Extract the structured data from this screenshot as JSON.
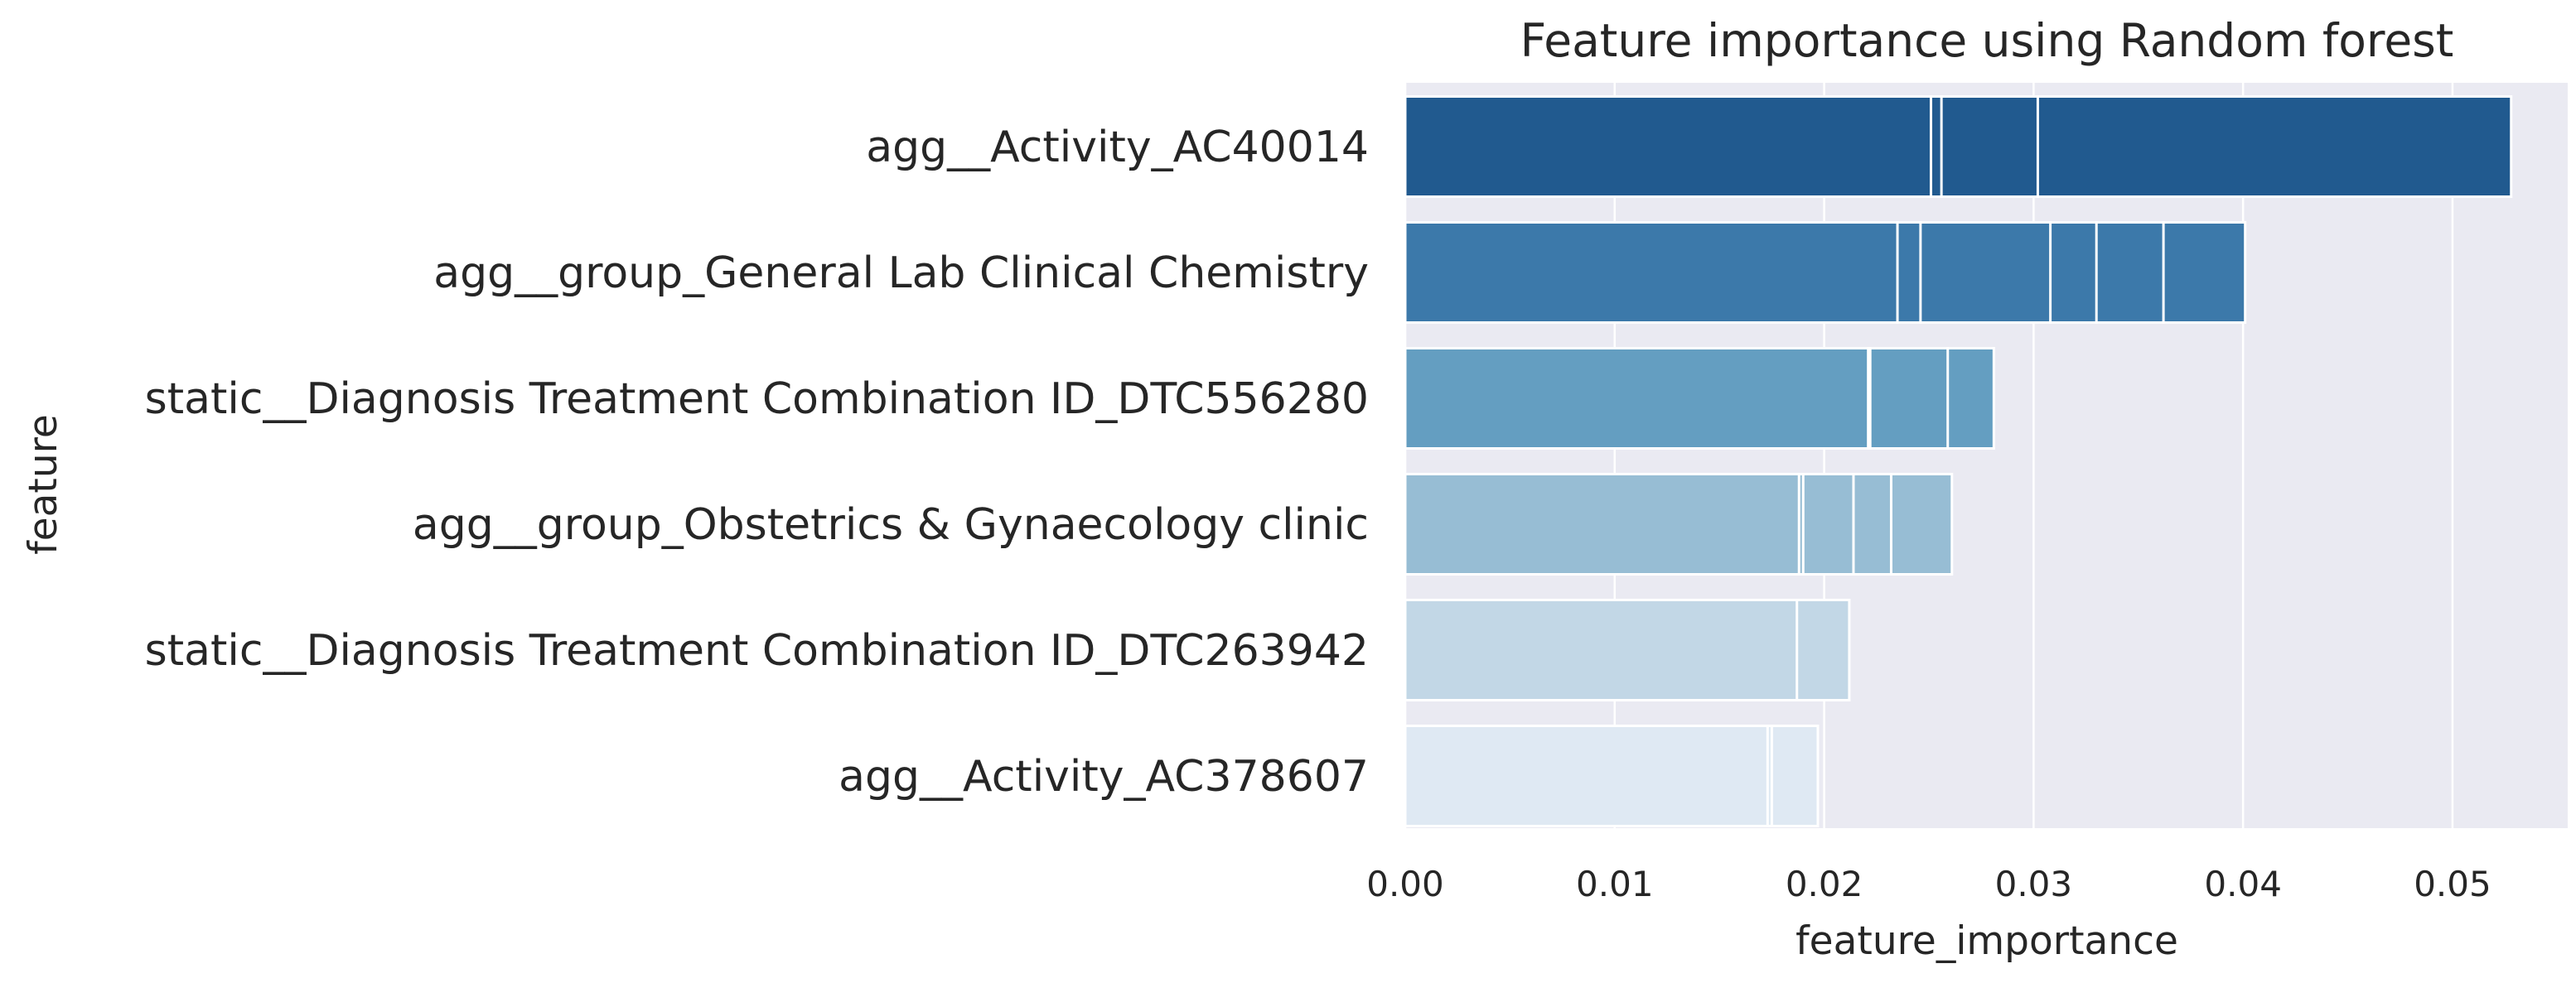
{
  "chart_data": {
    "type": "bar",
    "orientation": "horizontal",
    "title": "Feature importance using Random forest",
    "xlabel": "feature_importance",
    "ylabel": "feature",
    "xlim": [
      0,
      0.0555
    ],
    "xticks": [
      0.0,
      0.01,
      0.02,
      0.03,
      0.04,
      0.05
    ],
    "xtick_labels": [
      "0.00",
      "0.01",
      "0.02",
      "0.03",
      "0.04",
      "0.05"
    ],
    "grid": true,
    "categories": [
      "agg__Activity_AC40014",
      "agg__group_General Lab Clinical Chemistry",
      "static__Diagnosis Treatment Combination ID_DTC556280",
      "agg__group_Obstetrics & Gynaecology clinic",
      "static__Diagnosis Treatment Combination ID_DTC263942",
      "agg__Activity_AC378607"
    ],
    "values": [
      0.0528,
      0.0401,
      0.0281,
      0.0261,
      0.0212,
      0.0197
    ],
    "overlaid_bar_values": [
      [
        0.0528,
        0.0302,
        0.0256,
        0.0251
      ],
      [
        0.0401,
        0.0362,
        0.033,
        0.0308,
        0.0246,
        0.0235
      ],
      [
        0.0281,
        0.0259,
        0.0222,
        0.0221
      ],
      [
        0.0261,
        0.0232,
        0.0214,
        0.019,
        0.0188
      ],
      [
        0.0212,
        0.0187
      ],
      [
        0.0197,
        0.0175,
        0.0173
      ]
    ],
    "colors": [
      "#215a8f",
      "#3c79aa",
      "#649ec1",
      "#97bdd4",
      "#c2d7e6",
      "#dfe9f3"
    ],
    "plot_background": "#eaeaf2",
    "grid_color": "#ffffff"
  }
}
